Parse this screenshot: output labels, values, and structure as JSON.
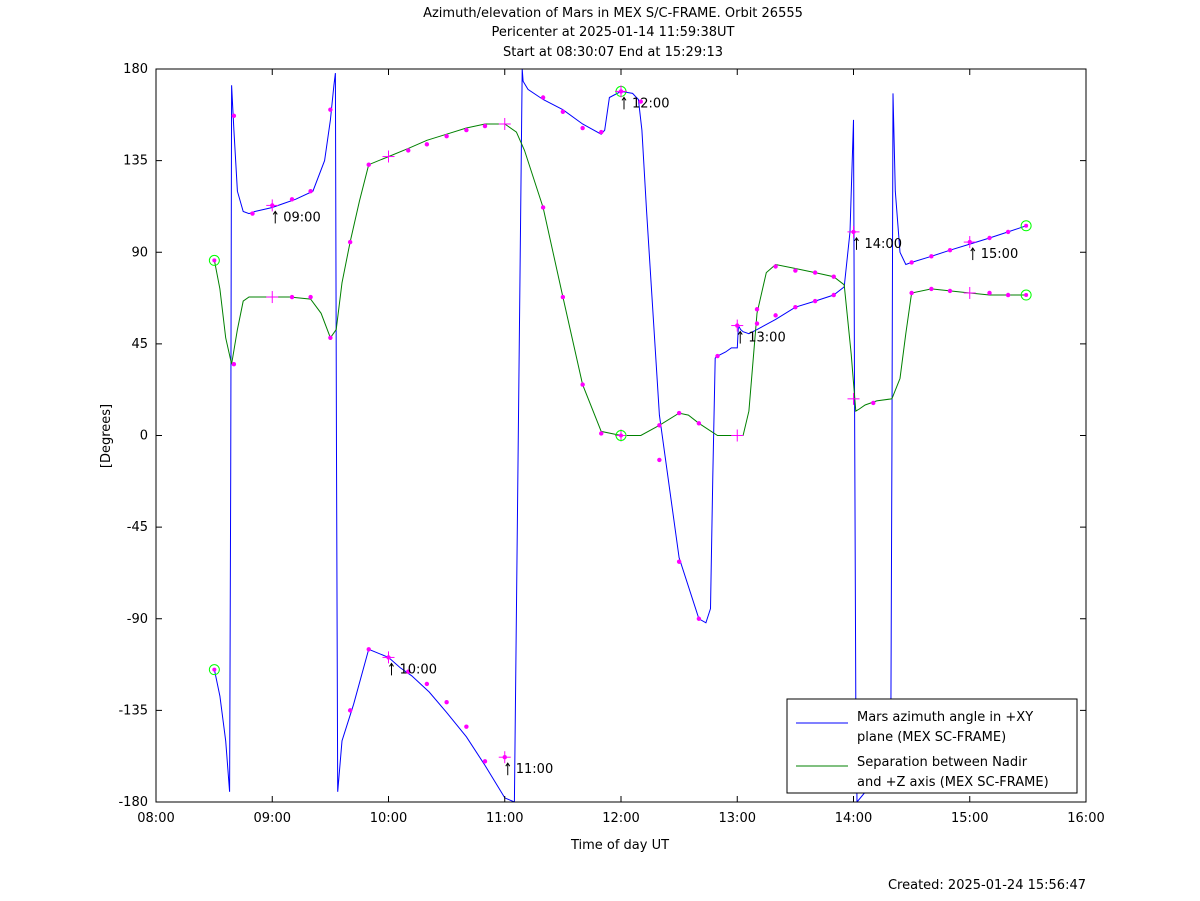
{
  "chart_data": {
    "type": "line",
    "title": [
      "Azimuth/elevation of Mars in MEX S/C-FRAME.  Orbit 26555",
      "Pericenter at 2025-01-14 11:59:38UT",
      "Start at 08:30:07 End at 15:29:13"
    ],
    "xlabel": "Time of day UT",
    "ylabel": "[Degrees]",
    "created": "Created: 2025-01-24 15:56:47",
    "xlim": [
      8.0,
      16.0
    ],
    "ylim": [
      -180,
      180
    ],
    "xticks": [
      8,
      9,
      10,
      11,
      12,
      13,
      14,
      15,
      16
    ],
    "xtick_labels": [
      "08:00",
      "09:00",
      "10:00",
      "11:00",
      "12:00",
      "13:00",
      "14:00",
      "15:00",
      "16:00"
    ],
    "yticks": [
      180,
      135,
      90,
      45,
      0,
      -45,
      -90,
      -135,
      -180
    ],
    "ytick_labels": [
      "180",
      "135",
      "90",
      "45",
      "0",
      "-45",
      "-90",
      "-135",
      "-180"
    ],
    "grid": false,
    "legend_position": "bottom-right",
    "colors": {
      "azimuth": "#0000ff",
      "separation": "#008000",
      "marker": "#ff00ff",
      "endpoint": "#00ff00"
    },
    "series": [
      {
        "name": "Mars azimuth angle in +XY plane (MEX SC-FRAME)",
        "legend_lines": [
          "Mars azimuth angle in +XY",
          "plane (MEX SC-FRAME)"
        ],
        "key": "azimuth",
        "x": [
          8.502,
          8.55,
          8.6,
          8.633,
          8.643,
          8.65,
          8.67,
          8.7,
          8.75,
          8.8,
          8.85,
          9.0,
          9.1,
          9.2,
          9.35,
          9.45,
          9.5,
          9.53,
          9.543,
          9.553,
          9.563,
          9.6,
          9.7,
          9.83,
          10.0,
          10.1,
          10.2,
          10.35,
          10.5,
          10.67,
          10.83,
          11.0,
          11.083,
          11.15,
          11.158,
          11.2,
          11.33,
          11.5,
          11.67,
          11.83,
          11.86,
          11.9,
          12.0,
          12.1,
          12.15,
          12.18,
          12.22,
          12.33,
          12.5,
          12.67,
          12.73,
          12.77,
          12.79,
          12.81,
          12.83,
          12.9,
          12.95,
          13.0,
          13.01,
          13.03,
          13.05,
          13.1,
          13.17,
          13.33,
          13.5,
          13.67,
          13.83,
          13.92,
          13.97,
          14.0,
          14.01,
          14.02,
          14.03,
          14.32,
          14.33,
          14.34,
          14.36,
          14.4,
          14.45,
          14.5,
          14.67,
          14.83,
          15.0,
          15.17,
          15.33,
          15.485
        ],
        "y": [
          -115,
          -128,
          -150,
          -175,
          -20,
          172,
          150,
          120,
          110,
          109,
          110,
          112,
          114,
          116,
          120,
          135,
          155,
          172,
          178,
          -10,
          -175,
          -150,
          -132,
          -105,
          -109,
          -114,
          -118,
          -126,
          -136,
          -148,
          -162,
          -178,
          -180,
          180,
          174,
          170,
          165,
          160,
          153,
          148,
          150,
          166,
          169,
          168,
          165,
          150,
          110,
          10,
          -60,
          -90,
          -92,
          -85,
          -20,
          38,
          39,
          41,
          43,
          43,
          54,
          52,
          51,
          50,
          52,
          57,
          63,
          66,
          69,
          73,
          100,
          155,
          0,
          -130,
          -180,
          -160,
          -10,
          168,
          120,
          90,
          84,
          85,
          88,
          91,
          94,
          97,
          100,
          103
        ]
      },
      {
        "name": "Separation between Nadir and +Z axis (MEX SC-FRAME)",
        "legend_lines": [
          "Separation between Nadir",
          "and +Z axis (MEX SC-FRAME)"
        ],
        "key": "separation",
        "x": [
          8.502,
          8.55,
          8.6,
          8.65,
          8.7,
          8.75,
          8.8,
          8.85,
          9.0,
          9.15,
          9.33,
          9.42,
          9.5,
          9.55,
          9.6,
          9.67,
          9.75,
          9.83,
          10.0,
          10.17,
          10.33,
          10.5,
          10.67,
          10.83,
          11.0,
          11.1,
          11.17,
          11.33,
          11.5,
          11.67,
          11.83,
          12.0,
          12.17,
          12.33,
          12.5,
          12.58,
          12.67,
          12.83,
          13.0,
          13.05,
          13.1,
          13.17,
          13.25,
          13.33,
          13.5,
          13.67,
          13.83,
          13.92,
          13.98,
          14.02,
          14.05,
          14.1,
          14.2,
          14.33,
          14.4,
          14.45,
          14.5,
          14.67,
          14.83,
          15.0,
          15.17,
          15.33,
          15.485
        ],
        "y": [
          86,
          72,
          48,
          35,
          52,
          66,
          68,
          68,
          68,
          68,
          67,
          60,
          48,
          52,
          75,
          95,
          115,
          133,
          137,
          141,
          145,
          148,
          151,
          153,
          153,
          149,
          140,
          112,
          68,
          25,
          2,
          0,
          0,
          5,
          11,
          10,
          6,
          0,
          0,
          0,
          12,
          60,
          80,
          84,
          82,
          80,
          78,
          74,
          40,
          12,
          13,
          15,
          17,
          18,
          28,
          50,
          70,
          72,
          71,
          70,
          69,
          69,
          69
        ]
      }
    ],
    "annotations": [
      {
        "time": 9.0,
        "label": "09:00",
        "y": 113
      },
      {
        "time": 10.0,
        "label": "10:00",
        "y": -109
      },
      {
        "time": 11.0,
        "label": "11:00",
        "y": -158
      },
      {
        "time": 12.0,
        "label": "12:00",
        "y": 169
      },
      {
        "time": 13.0,
        "label": "13:00",
        "y": 54
      },
      {
        "time": 14.0,
        "label": "14:00",
        "y": 100
      },
      {
        "time": 15.0,
        "label": "15:00",
        "y": 95
      }
    ],
    "hour_markers": [
      {
        "x": 9.0,
        "y": 68
      },
      {
        "x": 10.0,
        "y": 137
      },
      {
        "x": 11.0,
        "y": 153
      },
      {
        "x": 12.0,
        "y": 0
      },
      {
        "x": 13.0,
        "y": 0
      },
      {
        "x": 14.0,
        "y": 18
      },
      {
        "x": 15.0,
        "y": 70
      }
    ],
    "endpoints": [
      {
        "x": 8.502,
        "y": -115
      },
      {
        "x": 8.502,
        "y": 86
      },
      {
        "x": 12.0,
        "y": 169
      },
      {
        "x": 12.0,
        "y": 0
      },
      {
        "x": 15.485,
        "y": 103
      },
      {
        "x": 15.485,
        "y": 69
      }
    ],
    "dots": [
      {
        "x": 8.67,
        "y": 157
      },
      {
        "x": 8.83,
        "y": 109
      },
      {
        "x": 9.17,
        "y": 116
      },
      {
        "x": 9.33,
        "y": 120
      },
      {
        "x": 9.5,
        "y": 160
      },
      {
        "x": 9.67,
        "y": -135
      },
      {
        "x": 9.83,
        "y": -105
      },
      {
        "x": 10.17,
        "y": -116
      },
      {
        "x": 10.33,
        "y": -122
      },
      {
        "x": 10.5,
        "y": -131
      },
      {
        "x": 10.67,
        "y": -143
      },
      {
        "x": 10.83,
        "y": -160
      },
      {
        "x": 11.33,
        "y": 166
      },
      {
        "x": 11.5,
        "y": 159
      },
      {
        "x": 11.67,
        "y": 151
      },
      {
        "x": 11.83,
        "y": 149
      },
      {
        "x": 12.17,
        "y": 164
      },
      {
        "x": 12.33,
        "y": -12
      },
      {
        "x": 12.5,
        "y": -62
      },
      {
        "x": 12.67,
        "y": -90
      },
      {
        "x": 12.83,
        "y": 39
      },
      {
        "x": 13.17,
        "y": 55
      },
      {
        "x": 13.33,
        "y": 59
      },
      {
        "x": 13.5,
        "y": 63
      },
      {
        "x": 13.67,
        "y": 66
      },
      {
        "x": 13.83,
        "y": 69
      },
      {
        "x": 14.17,
        "y": 16
      },
      {
        "x": 14.5,
        "y": 85
      },
      {
        "x": 14.67,
        "y": 88
      },
      {
        "x": 14.83,
        "y": 91
      },
      {
        "x": 15.17,
        "y": 97
      },
      {
        "x": 15.33,
        "y": 100
      },
      {
        "x": 8.67,
        "y": 35
      },
      {
        "x": 9.17,
        "y": 68
      },
      {
        "x": 9.33,
        "y": 68
      },
      {
        "x": 9.5,
        "y": 48
      },
      {
        "x": 9.67,
        "y": 95
      },
      {
        "x": 9.83,
        "y": 133
      },
      {
        "x": 10.17,
        "y": 140
      },
      {
        "x": 10.33,
        "y": 143
      },
      {
        "x": 10.5,
        "y": 147
      },
      {
        "x": 10.67,
        "y": 150
      },
      {
        "x": 10.83,
        "y": 152
      },
      {
        "x": 11.33,
        "y": 112
      },
      {
        "x": 11.5,
        "y": 68
      },
      {
        "x": 11.67,
        "y": 25
      },
      {
        "x": 11.83,
        "y": 1
      },
      {
        "x": 12.33,
        "y": 5
      },
      {
        "x": 12.5,
        "y": 11
      },
      {
        "x": 12.67,
        "y": 6
      },
      {
        "x": 13.17,
        "y": 62
      },
      {
        "x": 13.33,
        "y": 83
      },
      {
        "x": 13.5,
        "y": 81
      },
      {
        "x": 13.67,
        "y": 80
      },
      {
        "x": 13.83,
        "y": 78
      },
      {
        "x": 14.5,
        "y": 70
      },
      {
        "x": 14.67,
        "y": 72
      },
      {
        "x": 14.83,
        "y": 71
      },
      {
        "x": 15.17,
        "y": 70
      },
      {
        "x": 15.33,
        "y": 69
      }
    ]
  }
}
